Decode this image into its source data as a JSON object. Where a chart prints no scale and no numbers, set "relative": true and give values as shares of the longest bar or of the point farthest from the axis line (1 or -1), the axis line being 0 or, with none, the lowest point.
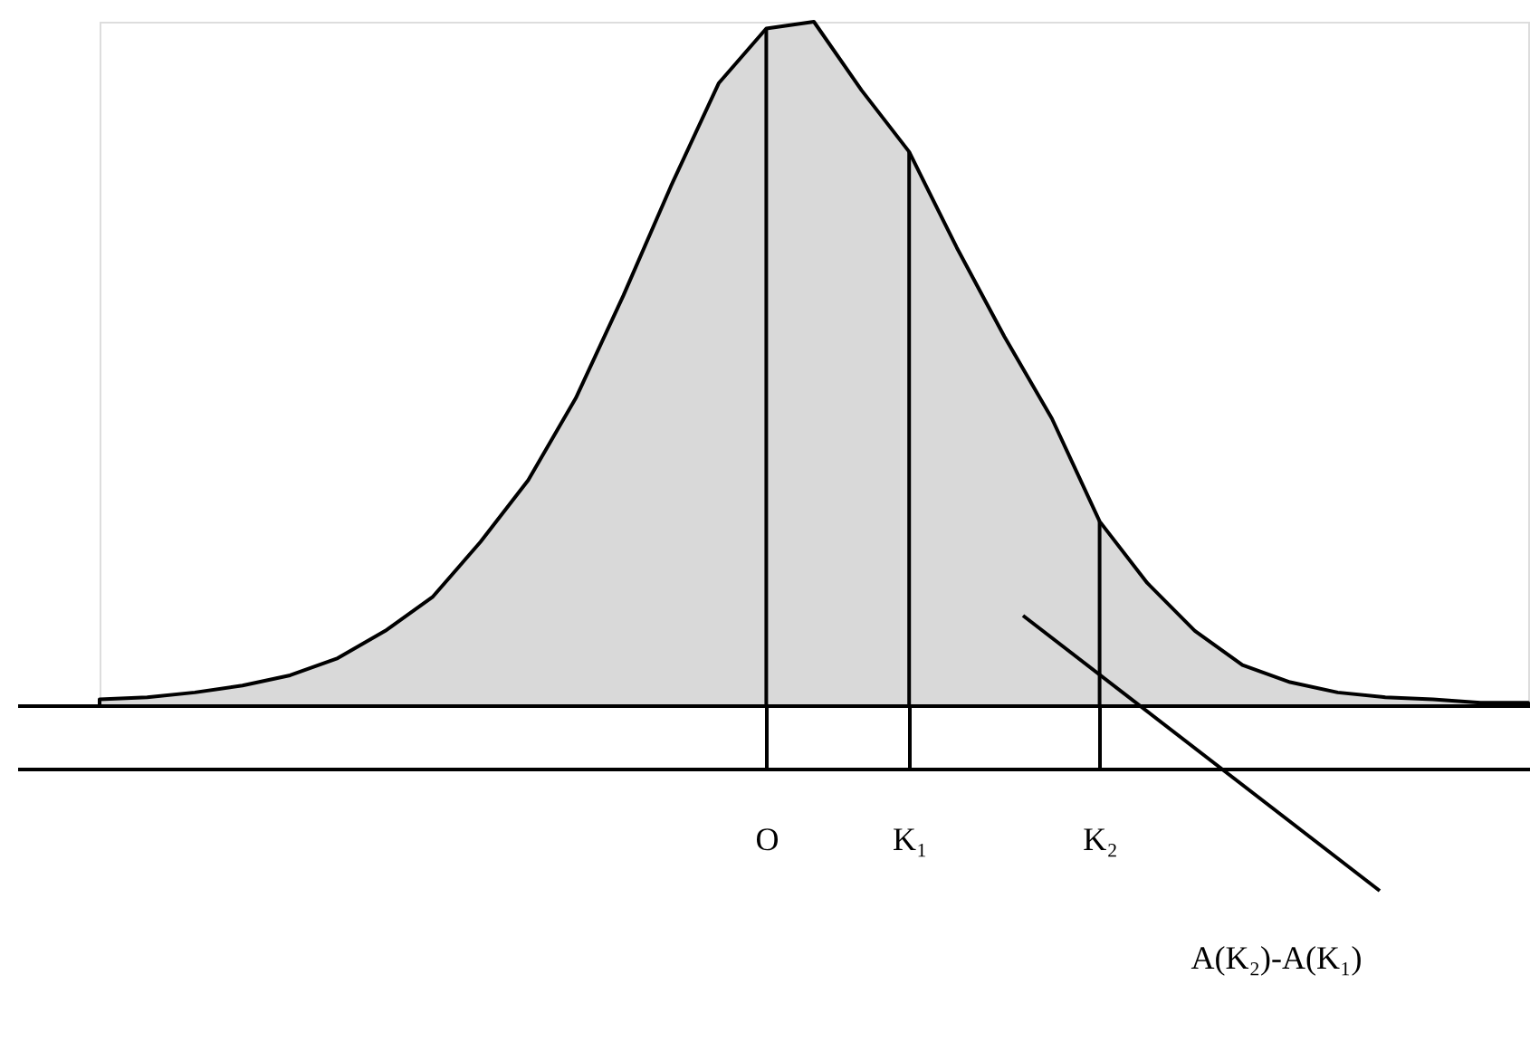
{
  "chart_data": {
    "type": "area",
    "relative": true,
    "grid": false,
    "categories": [
      null,
      null,
      null,
      null,
      null,
      null,
      null,
      null,
      null,
      null,
      null,
      null,
      null,
      null,
      "O",
      null,
      null,
      "K₁",
      null,
      null,
      null,
      "K₂",
      null,
      null,
      null,
      null,
      null,
      null,
      null,
      null,
      null
    ],
    "annotations": [
      "A(K₂)-A(K₁)"
    ],
    "series": [
      {
        "color": "#d9d9d9",
        "values": [
          0.01,
          0.013,
          0.02,
          0.03,
          0.045,
          0.07,
          0.11,
          0.16,
          0.24,
          0.33,
          0.45,
          0.6,
          0.76,
          0.91,
          0.99,
          1.0,
          0.9,
          0.81,
          0.67,
          0.54,
          0.42,
          0.27,
          0.18,
          0.11,
          0.06,
          0.035,
          0.02,
          0.013,
          0.01,
          0.005,
          0.005
        ]
      },
      {
        "type": "bar",
        "color": "#000000",
        "values": [
          null,
          null,
          null,
          null,
          null,
          null,
          null,
          null,
          null,
          null,
          null,
          null,
          null,
          null,
          0.99,
          null,
          null,
          0.81,
          null,
          null,
          null,
          0.27,
          null,
          null,
          null,
          null,
          null,
          null,
          null,
          null,
          null
        ]
      }
    ]
  }
}
